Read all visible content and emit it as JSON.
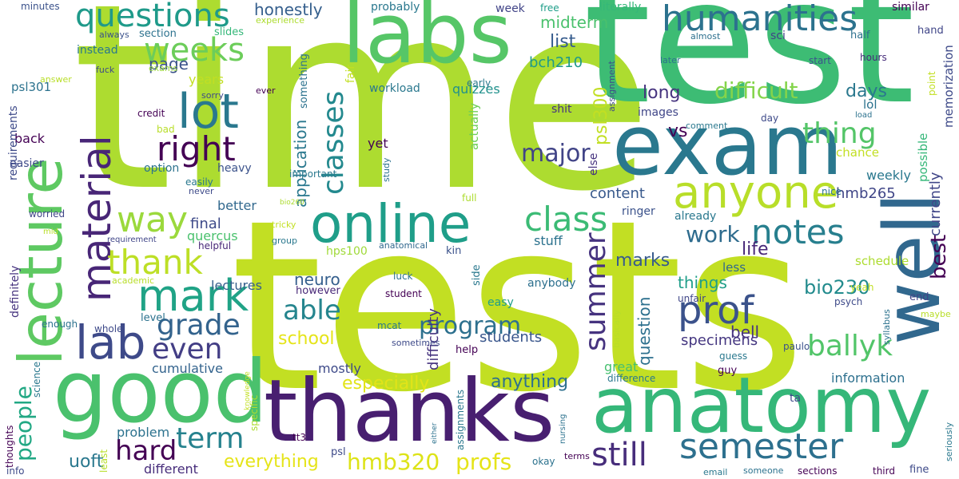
{
  "word_cloud": {
    "words": [
      {
        "text": "tests",
        "color": "#c2df23"
      },
      {
        "text": "time",
        "color": "#addc30"
      },
      {
        "text": "test",
        "color": "#3dbc74"
      },
      {
        "text": "lecture",
        "color": "#5ec962"
      },
      {
        "text": "labs",
        "color": "#56c667"
      },
      {
        "text": "exam",
        "color": "#2a788e"
      },
      {
        "text": "well",
        "color": "#31688e"
      },
      {
        "text": "good",
        "color": "#4ac16d"
      },
      {
        "text": "anatomy",
        "color": "#35b779"
      },
      {
        "text": "thanks",
        "color": "#481f70"
      },
      {
        "text": "online",
        "color": "#1f9e89"
      },
      {
        "text": "anyone",
        "color": "#b8de29"
      },
      {
        "text": "humanities",
        "color": "#2c728e"
      },
      {
        "text": "questions",
        "color": "#1f9a8a"
      },
      {
        "text": "lot",
        "color": "#2a788e"
      },
      {
        "text": "weeks",
        "color": "#6ccd5a"
      },
      {
        "text": "right",
        "color": "#440154"
      },
      {
        "text": "material",
        "color": "#482677"
      },
      {
        "text": "way",
        "color": "#9bd93c"
      },
      {
        "text": "mark",
        "color": "#20a386"
      },
      {
        "text": "lab",
        "color": "#3e4a89"
      },
      {
        "text": "thank",
        "color": "#bddf26"
      },
      {
        "text": "class",
        "color": "#3bbb75"
      },
      {
        "text": "notes",
        "color": "#277f8e"
      },
      {
        "text": "prof",
        "color": "#3b528b"
      },
      {
        "text": "semester",
        "color": "#2d708e"
      },
      {
        "text": "ballyk",
        "color": "#52c569"
      },
      {
        "text": "still",
        "color": "#472d7b"
      },
      {
        "text": "summer",
        "color": "#46337f"
      },
      {
        "text": "classes",
        "color": "#23898e"
      },
      {
        "text": "thing",
        "color": "#54c568"
      },
      {
        "text": "major",
        "color": "#414487"
      },
      {
        "text": "term",
        "color": "#26828e"
      },
      {
        "text": "grade",
        "color": "#33638d"
      },
      {
        "text": "even",
        "color": "#433e85"
      },
      {
        "text": "hard",
        "color": "#440154"
      },
      {
        "text": "able",
        "color": "#25858e"
      },
      {
        "text": "people",
        "color": "#22a884"
      },
      {
        "text": "program",
        "color": "#2d708e"
      },
      {
        "text": "hmb320",
        "color": "#dde318"
      },
      {
        "text": "profs",
        "color": "#e5e419"
      },
      {
        "text": "difficult",
        "color": "#84d44b"
      },
      {
        "text": "work",
        "color": "#2f6c8e"
      },
      {
        "text": "best",
        "color": "#440154"
      },
      {
        "text": "bio230",
        "color": "#228b8d"
      },
      {
        "text": "everything",
        "color": "#e5e419"
      },
      {
        "text": "anything",
        "color": "#2d708e"
      },
      {
        "text": "especially",
        "color": "#e2e418"
      },
      {
        "text": "school",
        "color": "#e5e419"
      },
      {
        "text": "uoft",
        "color": "#2a788e"
      },
      {
        "text": "honestly",
        "color": "#355f8d"
      },
      {
        "text": "marks",
        "color": "#375b8d"
      },
      {
        "text": "neuro",
        "color": "#355f8d"
      },
      {
        "text": "list",
        "color": "#365c8d"
      },
      {
        "text": "midterm",
        "color": "#4ac16d"
      },
      {
        "text": "bch210",
        "color": "#1f9a8a"
      },
      {
        "text": "page",
        "color": "#3b528b"
      },
      {
        "text": "psl300",
        "color": "#c2df23"
      },
      {
        "text": "life",
        "color": "#482878"
      },
      {
        "text": "things",
        "color": "#1f9e89"
      },
      {
        "text": "long",
        "color": "#46337f"
      },
      {
        "text": "days",
        "color": "#2a788e"
      },
      {
        "text": "vs",
        "color": "#440154"
      },
      {
        "text": "final",
        "color": "#3e4a89"
      },
      {
        "text": "content",
        "color": "#38598c"
      },
      {
        "text": "application",
        "color": "#2a788e"
      },
      {
        "text": "question",
        "color": "#2d708e"
      },
      {
        "text": "currently",
        "color": "#404688"
      },
      {
        "text": "specimens",
        "color": "#453781"
      },
      {
        "text": "bell",
        "color": "#46337f"
      },
      {
        "text": "hmb265",
        "color": "#404688"
      },
      {
        "text": "quercus",
        "color": "#4ac16d"
      },
      {
        "text": "lectures",
        "color": "#355f8d"
      },
      {
        "text": "cumulative",
        "color": "#33638d"
      },
      {
        "text": "students",
        "color": "#39568c"
      },
      {
        "text": "difficulty",
        "color": "#46337f"
      },
      {
        "text": "stuff",
        "color": "#2c728e"
      },
      {
        "text": "quizzes",
        "color": "#21918c"
      },
      {
        "text": "weekly",
        "color": "#2a788e"
      },
      {
        "text": "better",
        "color": "#31688e"
      },
      {
        "text": "years",
        "color": "#c2df23"
      },
      {
        "text": "problem",
        "color": "#2c728e"
      },
      {
        "text": "different",
        "color": "#472d7b"
      },
      {
        "text": "information",
        "color": "#2d708e"
      },
      {
        "text": "great",
        "color": "#46c06f"
      },
      {
        "text": "yet",
        "color": "#440154"
      },
      {
        "text": "mostly",
        "color": "#3e4a89"
      },
      {
        "text": "however",
        "color": "#482878"
      },
      {
        "text": "anybody",
        "color": "#2d708e"
      },
      {
        "text": "ringer",
        "color": "#3b528b"
      },
      {
        "text": "already",
        "color": "#2a788e"
      },
      {
        "text": "schedule",
        "color": "#addc30"
      },
      {
        "text": "less",
        "color": "#31688e"
      },
      {
        "text": "possible",
        "color": "#35b779"
      },
      {
        "text": "memorization",
        "color": "#3e4a89"
      },
      {
        "text": "chance",
        "color": "#c2df23"
      },
      {
        "text": "lol",
        "color": "#2c728e"
      },
      {
        "text": "actually",
        "color": "#6ece58"
      },
      {
        "text": "back",
        "color": "#440154"
      },
      {
        "text": "easier",
        "color": "#3e4a89"
      },
      {
        "text": "option",
        "color": "#2c728e"
      },
      {
        "text": "heavy",
        "color": "#3b528b"
      },
      {
        "text": "definitely",
        "color": "#46337f"
      },
      {
        "text": "psl301",
        "color": "#2c728e"
      },
      {
        "text": "requirements",
        "color": "#3e4a89"
      },
      {
        "text": "workload",
        "color": "#2a788e"
      },
      {
        "text": "hps100",
        "color": "#a0da39"
      },
      {
        "text": "images",
        "color": "#404688"
      },
      {
        "text": "something",
        "color": "#2c728e"
      },
      {
        "text": "instead",
        "color": "#2a788e"
      },
      {
        "text": "section",
        "color": "#2c728e"
      },
      {
        "text": "slides",
        "color": "#35b779"
      },
      {
        "text": "sci",
        "color": "#414487"
      },
      {
        "text": "half",
        "color": "#2d708e"
      },
      {
        "text": "hand",
        "color": "#404688"
      },
      {
        "text": "similar",
        "color": "#440154"
      },
      {
        "text": "literally",
        "color": "#35b779"
      },
      {
        "text": "probably",
        "color": "#2a788e"
      },
      {
        "text": "week",
        "color": "#414487"
      },
      {
        "text": "free",
        "color": "#1f9e89"
      },
      {
        "text": "fair",
        "color": "#c2df23"
      },
      {
        "text": "experience",
        "color": "#addc30"
      },
      {
        "text": "minutes",
        "color": "#3b528b"
      },
      {
        "text": "always",
        "color": "#3b528b"
      },
      {
        "text": "fuck",
        "color": "#3e4a89"
      },
      {
        "text": "exams",
        "color": "#9bd93c"
      },
      {
        "text": "answer",
        "color": "#b8de29"
      },
      {
        "text": "early",
        "color": "#2a788e"
      },
      {
        "text": "almost",
        "color": "#2d708e"
      },
      {
        "text": "later",
        "color": "#2c728e"
      },
      {
        "text": "hours",
        "color": "#472d7b"
      },
      {
        "text": "start",
        "color": "#3b528b"
      },
      {
        "text": "point",
        "color": "#c2df23"
      },
      {
        "text": "credit",
        "color": "#440154"
      },
      {
        "text": "sorry",
        "color": "#3e4a89"
      },
      {
        "text": "bad",
        "color": "#b8de29"
      },
      {
        "text": "easily",
        "color": "#2a788e"
      },
      {
        "text": "never",
        "color": "#3e4a89"
      },
      {
        "text": "important",
        "color": "#2a788e"
      },
      {
        "text": "comment",
        "color": "#2a788e"
      },
      {
        "text": "day",
        "color": "#3e4a89"
      },
      {
        "text": "load",
        "color": "#2c728e"
      },
      {
        "text": "nice",
        "color": "#2c728e"
      },
      {
        "text": "assignment",
        "color": "#3e4a89"
      },
      {
        "text": "shit",
        "color": "#46337f"
      },
      {
        "text": "else",
        "color": "#46337f"
      },
      {
        "text": "full",
        "color": "#addc30"
      },
      {
        "text": "ever",
        "color": "#440154"
      },
      {
        "text": "study",
        "color": "#2c728e"
      },
      {
        "text": "worried",
        "color": "#404688"
      },
      {
        "text": "bio260",
        "color": "#addc30"
      },
      {
        "text": "tricky",
        "color": "#c2df23"
      },
      {
        "text": "mid",
        "color": "#b8de29"
      },
      {
        "text": "requirement",
        "color": "#404688"
      },
      {
        "text": "helpful",
        "color": "#482878"
      },
      {
        "text": "group",
        "color": "#2a788e"
      },
      {
        "text": "anatomical",
        "color": "#31688e"
      },
      {
        "text": "kin",
        "color": "#3b528b"
      },
      {
        "text": "side",
        "color": "#2a788e"
      },
      {
        "text": "luck",
        "color": "#2c728e"
      },
      {
        "text": "student",
        "color": "#440154"
      },
      {
        "text": "easy",
        "color": "#1f9e89"
      },
      {
        "text": "academic",
        "color": "#b8de29"
      },
      {
        "text": "mcat",
        "color": "#2a788e"
      },
      {
        "text": "sometimes",
        "color": "#3e4a89"
      },
      {
        "text": "help",
        "color": "#440154"
      },
      {
        "text": "basically",
        "color": "#b8de29"
      },
      {
        "text": "unfair",
        "color": "#404688"
      },
      {
        "text": "psych",
        "color": "#3e4a89"
      },
      {
        "text": "yeah",
        "color": "#c2df23"
      },
      {
        "text": "end",
        "color": "#414487"
      },
      {
        "text": "maybe",
        "color": "#b8de29"
      },
      {
        "text": "guess",
        "color": "#2a788e"
      },
      {
        "text": "paulo",
        "color": "#3b528b"
      },
      {
        "text": "syllabus",
        "color": "#2c728e"
      },
      {
        "text": "guy",
        "color": "#440154"
      },
      {
        "text": "difference",
        "color": "#2a788e"
      },
      {
        "text": "ta",
        "color": "#3e4a89"
      },
      {
        "text": "level",
        "color": "#2c728e"
      },
      {
        "text": "whole",
        "color": "#3e4a89"
      },
      {
        "text": "enough",
        "color": "#2c728e"
      },
      {
        "text": "science",
        "color": "#2a788e"
      },
      {
        "text": "thoughts",
        "color": "#440154"
      },
      {
        "text": "info",
        "color": "#3e4a89"
      },
      {
        "text": "specific",
        "color": "#addc30"
      },
      {
        "text": "knowledge",
        "color": "#c2df23"
      },
      {
        "text": "tt3",
        "color": "#440154"
      },
      {
        "text": "psl",
        "color": "#3e4a89"
      },
      {
        "text": "assignments",
        "color": "#2a788e"
      },
      {
        "text": "least",
        "color": "#b8de29"
      },
      {
        "text": "either",
        "color": "#2c728e"
      },
      {
        "text": "nursing",
        "color": "#2c728e"
      },
      {
        "text": "okay",
        "color": "#2c728e"
      },
      {
        "text": "terms",
        "color": "#440154"
      },
      {
        "text": "email",
        "color": "#2a788e"
      },
      {
        "text": "someone",
        "color": "#2c728e"
      },
      {
        "text": "sections",
        "color": "#440154"
      },
      {
        "text": "third",
        "color": "#440154"
      },
      {
        "text": "fine",
        "color": "#3e4a89"
      },
      {
        "text": "seriously",
        "color": "#2a788e"
      }
    ]
  }
}
